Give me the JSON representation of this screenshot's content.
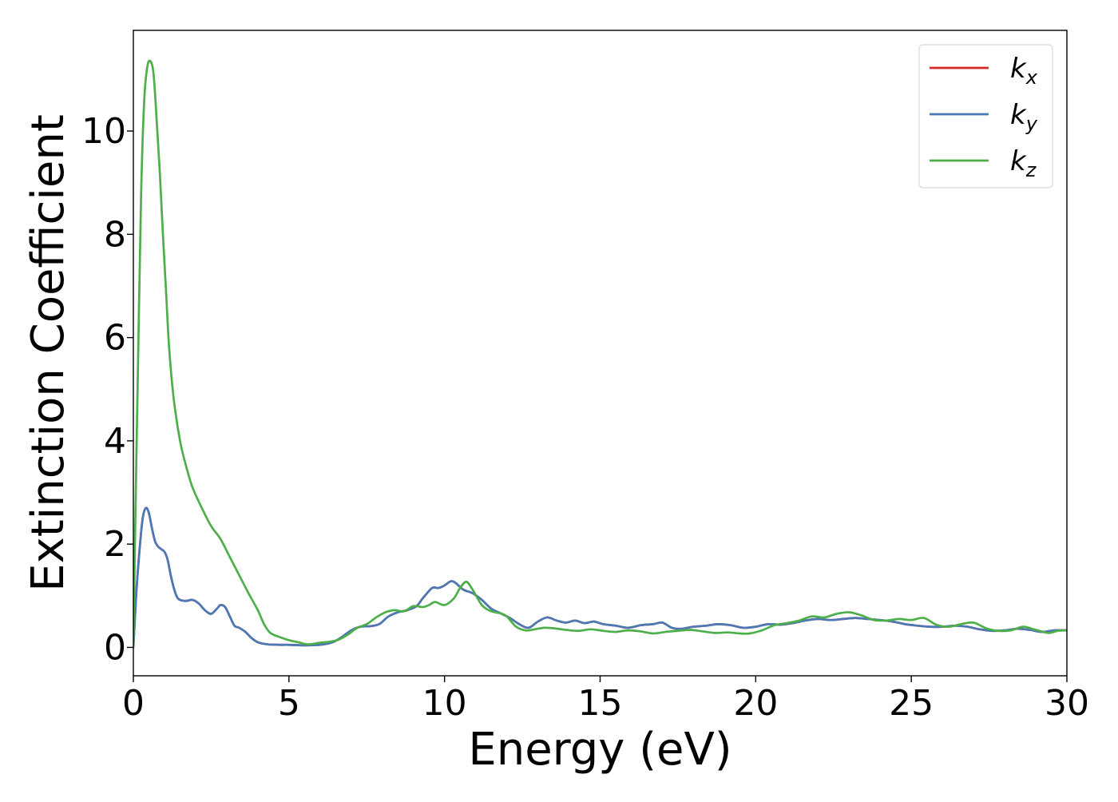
{
  "chart_data": {
    "type": "line",
    "title": "",
    "xlabel": "Energy (eV)",
    "ylabel": "Extinction Coefficient",
    "xlim": [
      0,
      30
    ],
    "ylim": [
      -0.55,
      11.95
    ],
    "x_ticks": [
      0,
      5,
      10,
      15,
      20,
      25,
      30
    ],
    "y_ticks": [
      0,
      2,
      4,
      6,
      8,
      10
    ],
    "grid": false,
    "legend_position": "top-right",
    "series": [
      {
        "name": "k_x",
        "label_base": "k",
        "label_sub": "x",
        "color": "#d62728",
        "points": [
          [
            0.0,
            0.0
          ],
          [
            0.1,
            1.1
          ],
          [
            0.2,
            1.9
          ],
          [
            0.3,
            2.5
          ],
          [
            0.4,
            2.7
          ],
          [
            0.5,
            2.6
          ],
          [
            0.6,
            2.3
          ],
          [
            0.7,
            2.05
          ],
          [
            0.8,
            1.95
          ],
          [
            0.9,
            1.9
          ],
          [
            1.0,
            1.85
          ],
          [
            1.1,
            1.7
          ],
          [
            1.2,
            1.4
          ],
          [
            1.3,
            1.15
          ],
          [
            1.4,
            0.98
          ],
          [
            1.5,
            0.92
          ],
          [
            1.7,
            0.9
          ],
          [
            1.9,
            0.92
          ],
          [
            2.1,
            0.85
          ],
          [
            2.3,
            0.72
          ],
          [
            2.5,
            0.65
          ],
          [
            2.7,
            0.76
          ],
          [
            2.8,
            0.82
          ],
          [
            2.95,
            0.78
          ],
          [
            3.1,
            0.6
          ],
          [
            3.25,
            0.42
          ],
          [
            3.4,
            0.38
          ],
          [
            3.6,
            0.3
          ],
          [
            3.8,
            0.18
          ],
          [
            4.0,
            0.1
          ],
          [
            4.3,
            0.06
          ],
          [
            4.7,
            0.05
          ],
          [
            5.0,
            0.05
          ],
          [
            5.5,
            0.04
          ],
          [
            6.0,
            0.05
          ],
          [
            6.4,
            0.1
          ],
          [
            6.7,
            0.2
          ],
          [
            7.0,
            0.33
          ],
          [
            7.3,
            0.4
          ],
          [
            7.6,
            0.41
          ],
          [
            7.9,
            0.45
          ],
          [
            8.2,
            0.6
          ],
          [
            8.5,
            0.68
          ],
          [
            8.8,
            0.72
          ],
          [
            9.1,
            0.8
          ],
          [
            9.3,
            0.95
          ],
          [
            9.6,
            1.15
          ],
          [
            9.8,
            1.15
          ],
          [
            10.0,
            1.2
          ],
          [
            10.2,
            1.28
          ],
          [
            10.35,
            1.25
          ],
          [
            10.6,
            1.12
          ],
          [
            10.9,
            1.05
          ],
          [
            11.2,
            0.92
          ],
          [
            11.5,
            0.75
          ],
          [
            11.8,
            0.66
          ],
          [
            12.1,
            0.57
          ],
          [
            12.4,
            0.45
          ],
          [
            12.7,
            0.38
          ],
          [
            13.0,
            0.5
          ],
          [
            13.3,
            0.58
          ],
          [
            13.6,
            0.52
          ],
          [
            13.9,
            0.48
          ],
          [
            14.2,
            0.52
          ],
          [
            14.5,
            0.47
          ],
          [
            14.8,
            0.5
          ],
          [
            15.1,
            0.45
          ],
          [
            15.5,
            0.42
          ],
          [
            15.9,
            0.38
          ],
          [
            16.3,
            0.43
          ],
          [
            16.7,
            0.45
          ],
          [
            17.0,
            0.48
          ],
          [
            17.3,
            0.38
          ],
          [
            17.6,
            0.36
          ],
          [
            18.0,
            0.4
          ],
          [
            18.4,
            0.42
          ],
          [
            18.8,
            0.45
          ],
          [
            19.2,
            0.43
          ],
          [
            19.6,
            0.38
          ],
          [
            20.0,
            0.4
          ],
          [
            20.4,
            0.45
          ],
          [
            20.8,
            0.44
          ],
          [
            21.2,
            0.47
          ],
          [
            21.6,
            0.52
          ],
          [
            22.0,
            0.55
          ],
          [
            22.4,
            0.53
          ],
          [
            22.8,
            0.55
          ],
          [
            23.2,
            0.57
          ],
          [
            23.6,
            0.55
          ],
          [
            24.0,
            0.53
          ],
          [
            24.4,
            0.5
          ],
          [
            24.8,
            0.45
          ],
          [
            25.2,
            0.42
          ],
          [
            25.6,
            0.4
          ],
          [
            26.0,
            0.4
          ],
          [
            26.4,
            0.42
          ],
          [
            26.8,
            0.4
          ],
          [
            27.2,
            0.35
          ],
          [
            27.6,
            0.32
          ],
          [
            28.0,
            0.33
          ],
          [
            28.4,
            0.36
          ],
          [
            28.8,
            0.34
          ],
          [
            29.2,
            0.3
          ],
          [
            29.6,
            0.33
          ],
          [
            30.0,
            0.33
          ]
        ]
      },
      {
        "name": "k_y",
        "label_base": "k",
        "label_sub": "y",
        "color": "#4a79b5",
        "points": [
          [
            0.0,
            0.0
          ],
          [
            0.1,
            1.1
          ],
          [
            0.2,
            1.9
          ],
          [
            0.3,
            2.5
          ],
          [
            0.4,
            2.7
          ],
          [
            0.5,
            2.6
          ],
          [
            0.6,
            2.3
          ],
          [
            0.7,
            2.05
          ],
          [
            0.8,
            1.95
          ],
          [
            0.9,
            1.9
          ],
          [
            1.0,
            1.85
          ],
          [
            1.1,
            1.7
          ],
          [
            1.2,
            1.4
          ],
          [
            1.3,
            1.15
          ],
          [
            1.4,
            0.98
          ],
          [
            1.5,
            0.92
          ],
          [
            1.7,
            0.9
          ],
          [
            1.9,
            0.92
          ],
          [
            2.1,
            0.85
          ],
          [
            2.3,
            0.72
          ],
          [
            2.5,
            0.65
          ],
          [
            2.7,
            0.76
          ],
          [
            2.8,
            0.82
          ],
          [
            2.95,
            0.78
          ],
          [
            3.1,
            0.6
          ],
          [
            3.25,
            0.42
          ],
          [
            3.4,
            0.38
          ],
          [
            3.6,
            0.3
          ],
          [
            3.8,
            0.18
          ],
          [
            4.0,
            0.1
          ],
          [
            4.3,
            0.06
          ],
          [
            4.7,
            0.05
          ],
          [
            5.0,
            0.05
          ],
          [
            5.5,
            0.04
          ],
          [
            6.0,
            0.05
          ],
          [
            6.4,
            0.1
          ],
          [
            6.7,
            0.2
          ],
          [
            7.0,
            0.33
          ],
          [
            7.3,
            0.4
          ],
          [
            7.6,
            0.41
          ],
          [
            7.9,
            0.45
          ],
          [
            8.2,
            0.6
          ],
          [
            8.5,
            0.68
          ],
          [
            8.8,
            0.72
          ],
          [
            9.1,
            0.8
          ],
          [
            9.3,
            0.95
          ],
          [
            9.6,
            1.15
          ],
          [
            9.8,
            1.15
          ],
          [
            10.0,
            1.2
          ],
          [
            10.2,
            1.28
          ],
          [
            10.35,
            1.25
          ],
          [
            10.6,
            1.12
          ],
          [
            10.9,
            1.05
          ],
          [
            11.2,
            0.92
          ],
          [
            11.5,
            0.75
          ],
          [
            11.8,
            0.66
          ],
          [
            12.1,
            0.57
          ],
          [
            12.4,
            0.45
          ],
          [
            12.7,
            0.38
          ],
          [
            13.0,
            0.5
          ],
          [
            13.3,
            0.58
          ],
          [
            13.6,
            0.52
          ],
          [
            13.9,
            0.48
          ],
          [
            14.2,
            0.52
          ],
          [
            14.5,
            0.47
          ],
          [
            14.8,
            0.5
          ],
          [
            15.1,
            0.45
          ],
          [
            15.5,
            0.42
          ],
          [
            15.9,
            0.38
          ],
          [
            16.3,
            0.43
          ],
          [
            16.7,
            0.45
          ],
          [
            17.0,
            0.48
          ],
          [
            17.3,
            0.38
          ],
          [
            17.6,
            0.36
          ],
          [
            18.0,
            0.4
          ],
          [
            18.4,
            0.42
          ],
          [
            18.8,
            0.45
          ],
          [
            19.2,
            0.43
          ],
          [
            19.6,
            0.38
          ],
          [
            20.0,
            0.4
          ],
          [
            20.4,
            0.45
          ],
          [
            20.8,
            0.44
          ],
          [
            21.2,
            0.47
          ],
          [
            21.6,
            0.52
          ],
          [
            22.0,
            0.55
          ],
          [
            22.4,
            0.53
          ],
          [
            22.8,
            0.55
          ],
          [
            23.2,
            0.57
          ],
          [
            23.6,
            0.55
          ],
          [
            24.0,
            0.53
          ],
          [
            24.4,
            0.5
          ],
          [
            24.8,
            0.45
          ],
          [
            25.2,
            0.42
          ],
          [
            25.6,
            0.4
          ],
          [
            26.0,
            0.4
          ],
          [
            26.4,
            0.42
          ],
          [
            26.8,
            0.4
          ],
          [
            27.2,
            0.35
          ],
          [
            27.6,
            0.32
          ],
          [
            28.0,
            0.33
          ],
          [
            28.4,
            0.36
          ],
          [
            28.8,
            0.34
          ],
          [
            29.2,
            0.3
          ],
          [
            29.6,
            0.33
          ],
          [
            30.0,
            0.33
          ]
        ]
      },
      {
        "name": "k_z",
        "label_base": "k",
        "label_sub": "z",
        "color": "#4daf4a",
        "points": [
          [
            0.0,
            0.0
          ],
          [
            0.05,
            2.0
          ],
          [
            0.15,
            5.5
          ],
          [
            0.25,
            8.8
          ],
          [
            0.35,
            10.6
          ],
          [
            0.45,
            11.25
          ],
          [
            0.55,
            11.35
          ],
          [
            0.65,
            11.1
          ],
          [
            0.75,
            10.2
          ],
          [
            0.85,
            9.2
          ],
          [
            0.95,
            8.0
          ],
          [
            1.05,
            6.9
          ],
          [
            1.15,
            5.8
          ],
          [
            1.3,
            4.8
          ],
          [
            1.5,
            4.0
          ],
          [
            1.7,
            3.5
          ],
          [
            1.9,
            3.1
          ],
          [
            2.2,
            2.7
          ],
          [
            2.5,
            2.35
          ],
          [
            2.8,
            2.1
          ],
          [
            3.1,
            1.75
          ],
          [
            3.4,
            1.4
          ],
          [
            3.7,
            1.05
          ],
          [
            4.0,
            0.72
          ],
          [
            4.2,
            0.45
          ],
          [
            4.4,
            0.28
          ],
          [
            4.7,
            0.2
          ],
          [
            5.0,
            0.14
          ],
          [
            5.3,
            0.1
          ],
          [
            5.6,
            0.06
          ],
          [
            6.0,
            0.09
          ],
          [
            6.3,
            0.11
          ],
          [
            6.6,
            0.15
          ],
          [
            6.9,
            0.25
          ],
          [
            7.2,
            0.38
          ],
          [
            7.5,
            0.45
          ],
          [
            7.8,
            0.58
          ],
          [
            8.1,
            0.68
          ],
          [
            8.4,
            0.72
          ],
          [
            8.7,
            0.7
          ],
          [
            9.0,
            0.8
          ],
          [
            9.3,
            0.78
          ],
          [
            9.5,
            0.82
          ],
          [
            9.7,
            0.88
          ],
          [
            10.0,
            0.82
          ],
          [
            10.3,
            0.95
          ],
          [
            10.5,
            1.15
          ],
          [
            10.7,
            1.27
          ],
          [
            10.9,
            1.12
          ],
          [
            11.2,
            0.82
          ],
          [
            11.5,
            0.7
          ],
          [
            11.8,
            0.66
          ],
          [
            12.0,
            0.6
          ],
          [
            12.3,
            0.4
          ],
          [
            12.6,
            0.33
          ],
          [
            12.9,
            0.35
          ],
          [
            13.2,
            0.38
          ],
          [
            13.5,
            0.37
          ],
          [
            13.9,
            0.34
          ],
          [
            14.3,
            0.32
          ],
          [
            14.7,
            0.35
          ],
          [
            15.1,
            0.32
          ],
          [
            15.5,
            0.3
          ],
          [
            15.9,
            0.33
          ],
          [
            16.3,
            0.31
          ],
          [
            16.7,
            0.27
          ],
          [
            17.1,
            0.3
          ],
          [
            17.5,
            0.32
          ],
          [
            17.9,
            0.34
          ],
          [
            18.3,
            0.31
          ],
          [
            18.7,
            0.28
          ],
          [
            19.1,
            0.29
          ],
          [
            19.5,
            0.27
          ],
          [
            19.8,
            0.27
          ],
          [
            20.2,
            0.33
          ],
          [
            20.6,
            0.43
          ],
          [
            21.0,
            0.47
          ],
          [
            21.4,
            0.52
          ],
          [
            21.8,
            0.6
          ],
          [
            22.2,
            0.58
          ],
          [
            22.6,
            0.65
          ],
          [
            23.0,
            0.68
          ],
          [
            23.4,
            0.62
          ],
          [
            23.8,
            0.53
          ],
          [
            24.2,
            0.52
          ],
          [
            24.6,
            0.55
          ],
          [
            25.0,
            0.53
          ],
          [
            25.4,
            0.57
          ],
          [
            25.8,
            0.44
          ],
          [
            26.2,
            0.4
          ],
          [
            26.6,
            0.45
          ],
          [
            27.0,
            0.48
          ],
          [
            27.4,
            0.37
          ],
          [
            27.8,
            0.32
          ],
          [
            28.2,
            0.33
          ],
          [
            28.6,
            0.4
          ],
          [
            29.0,
            0.34
          ],
          [
            29.4,
            0.28
          ],
          [
            29.7,
            0.32
          ],
          [
            30.0,
            0.33
          ]
        ]
      }
    ]
  }
}
